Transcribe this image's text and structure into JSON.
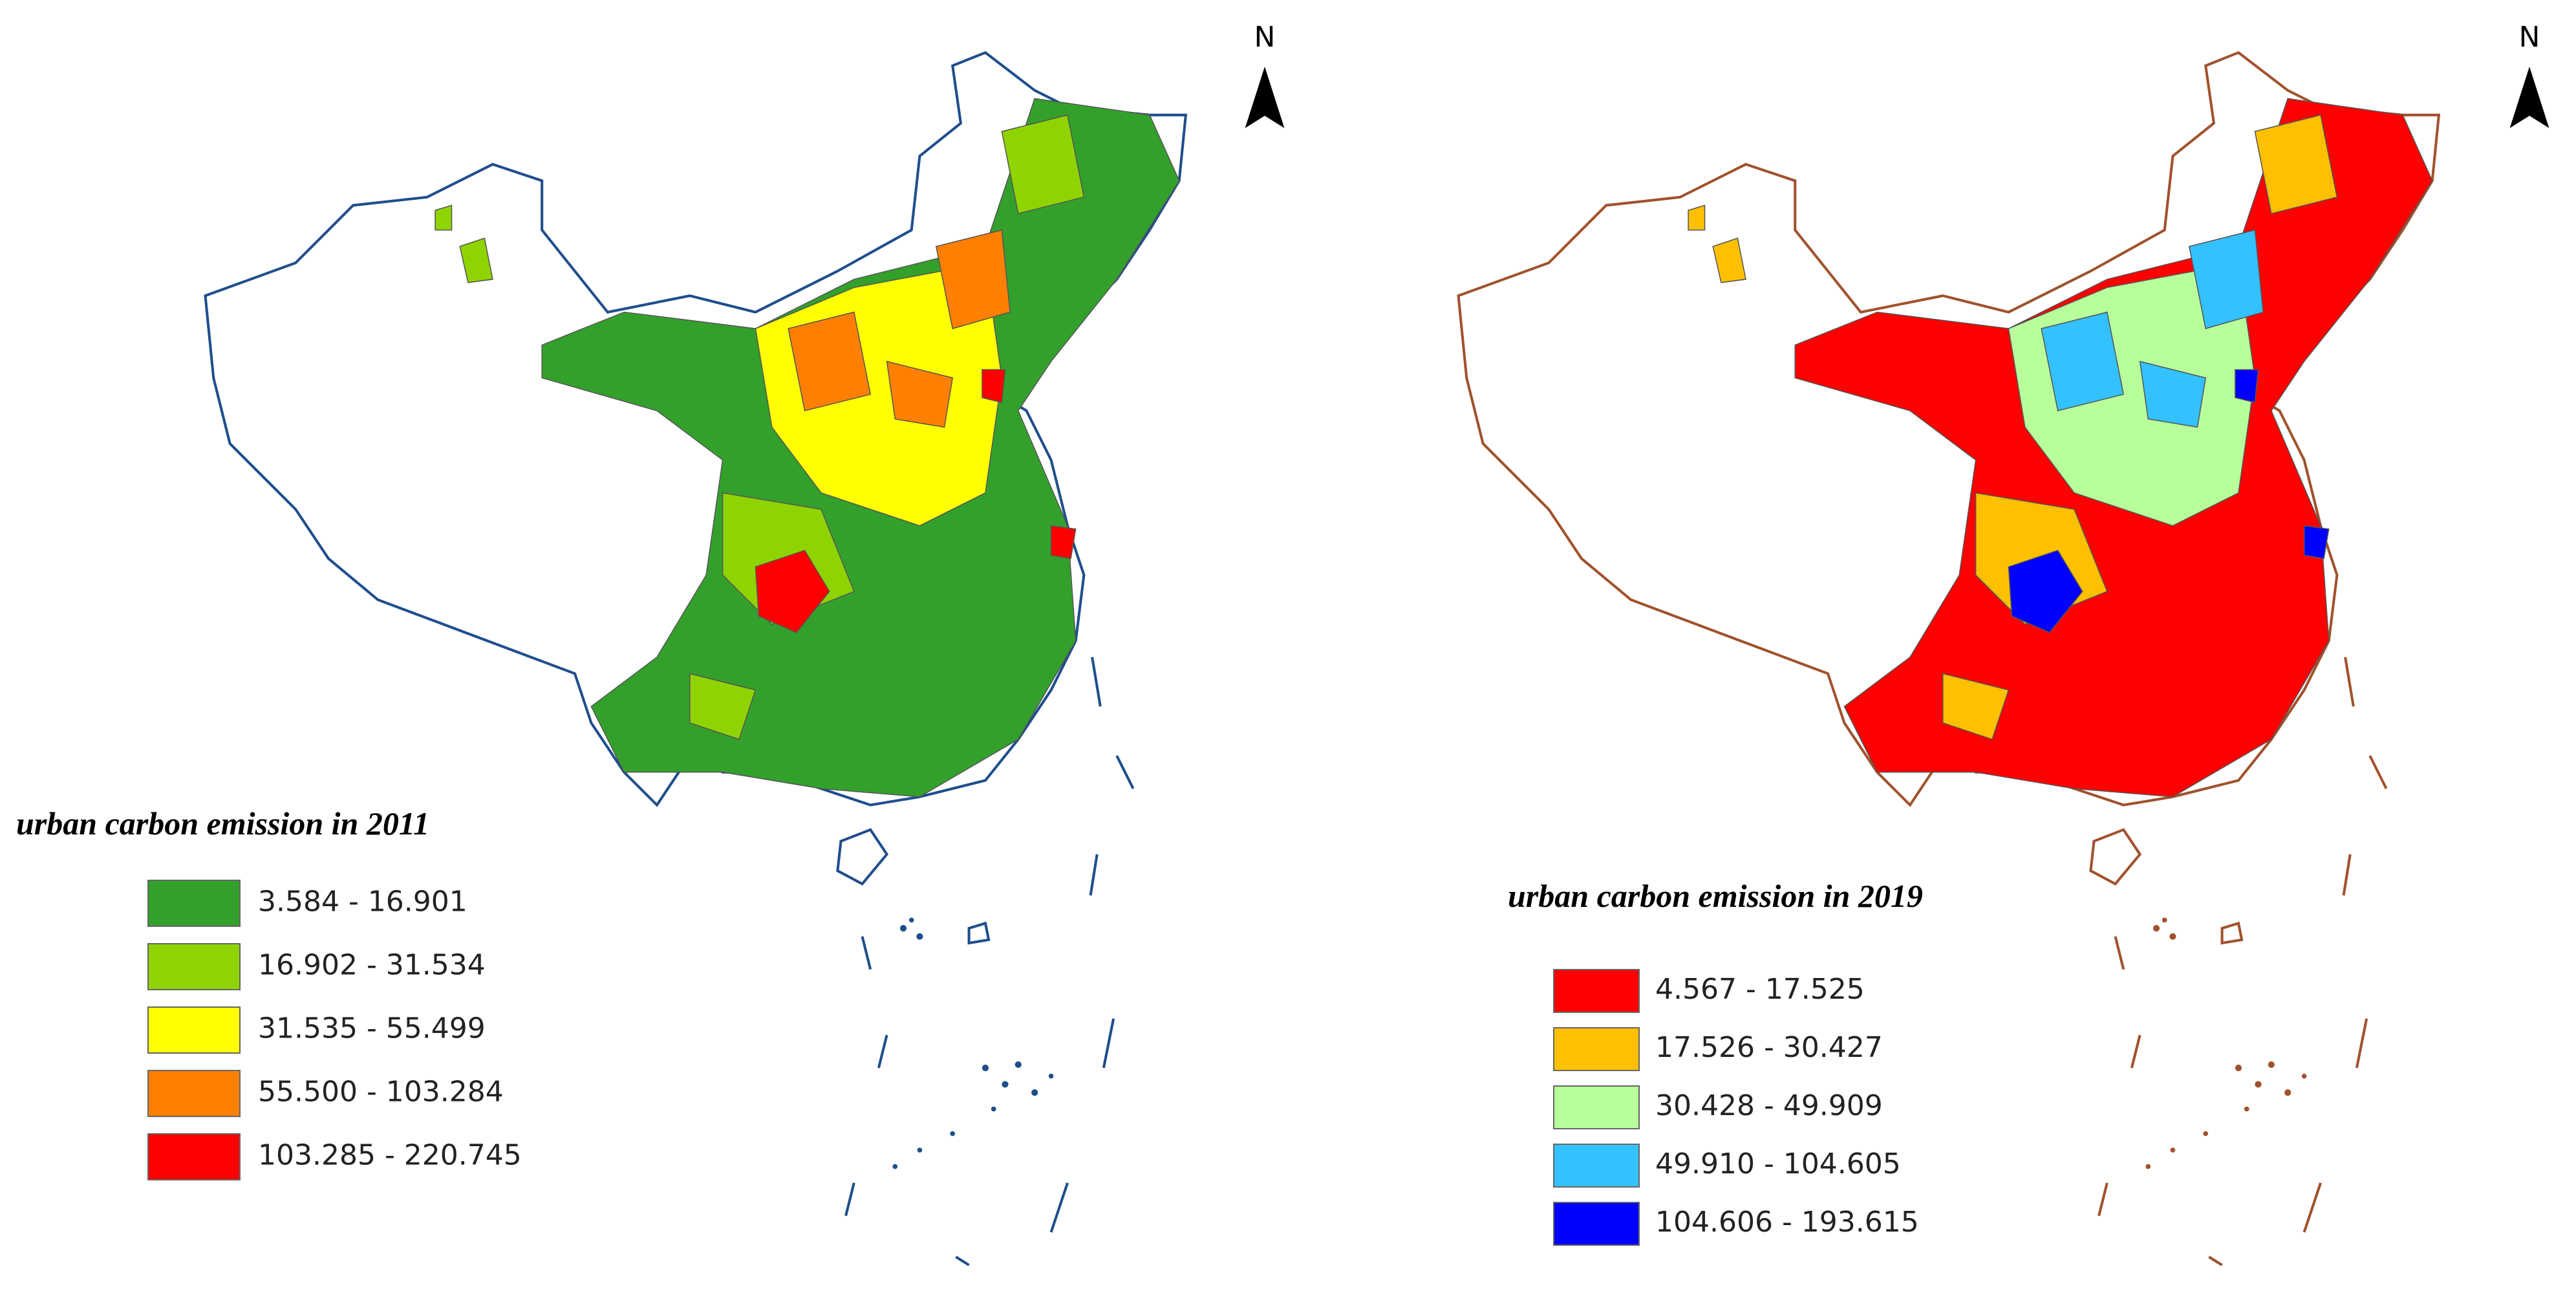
{
  "maps": [
    {
      "north_label": "N",
      "title": "urban carbon emission in 2011",
      "legend": [
        {
          "label": "3.584 - 16.901",
          "color": "#33a02c"
        },
        {
          "label": "16.902 - 31.534",
          "color": "#8fd400"
        },
        {
          "label": "31.535 - 55.499",
          "color": "#ffff00"
        },
        {
          "label": "55.500 - 103.284",
          "color": "#ff8000"
        },
        {
          "label": "103.285 - 220.745",
          "color": "#ff0000"
        }
      ],
      "outline_color": "#1f4e8c"
    },
    {
      "north_label": "N",
      "title": "urban carbon emission in 2019",
      "legend": [
        {
          "label": "4.567 - 17.525",
          "color": "#ff0000"
        },
        {
          "label": "17.526 - 30.427",
          "color": "#ffc000"
        },
        {
          "label": "30.428 - 49.909",
          "color": "#b8ff9c"
        },
        {
          "label": "49.910 - 104.605",
          "color": "#33c1ff"
        },
        {
          "label": "104.606 - 193.615",
          "color": "#0000ff"
        }
      ],
      "outline_color": "#a0522d"
    }
  ]
}
